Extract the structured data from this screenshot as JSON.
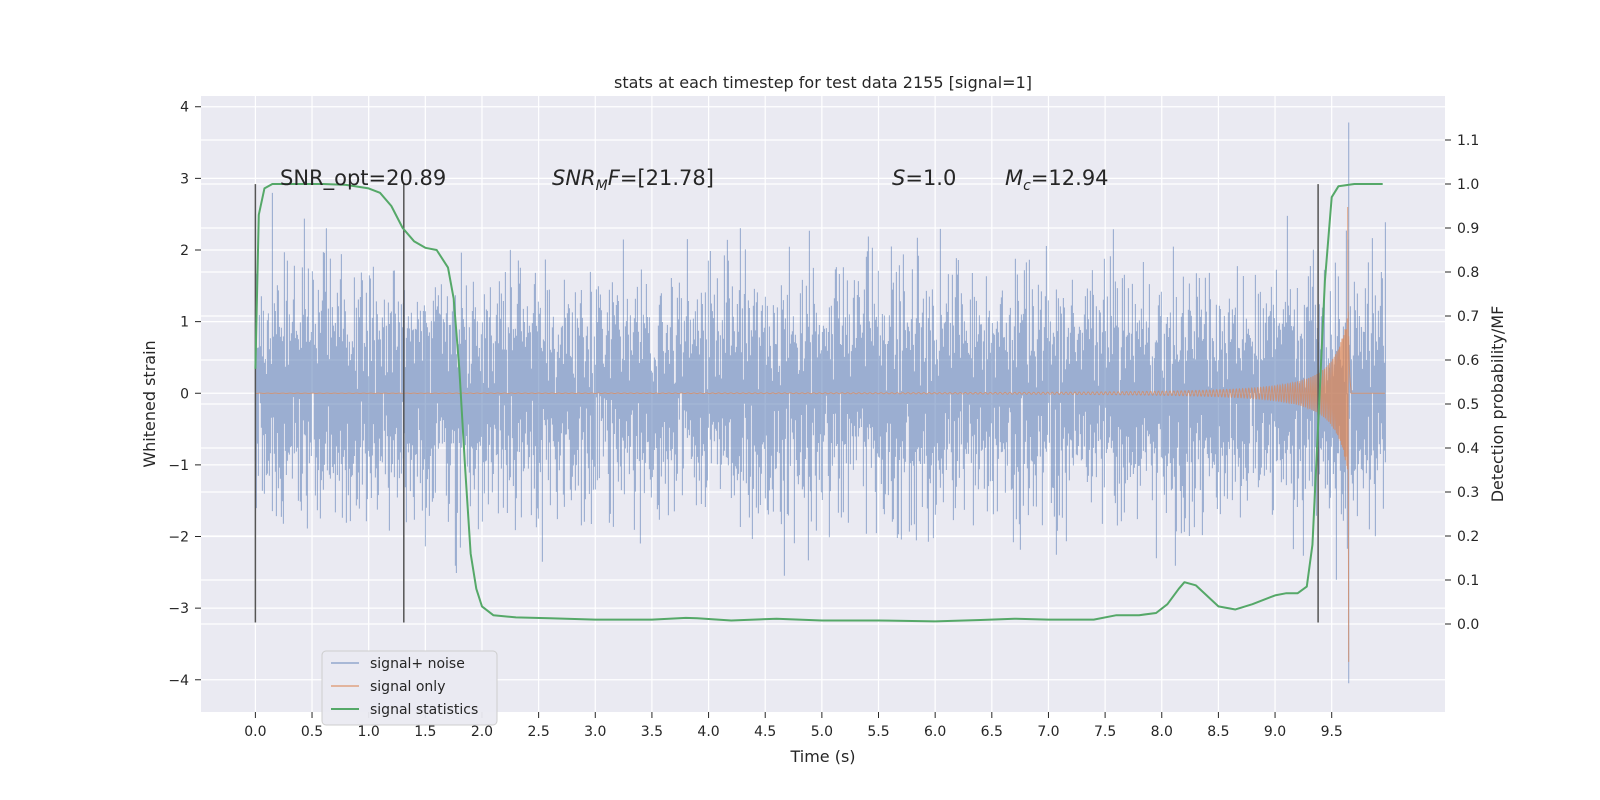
{
  "chart_data": {
    "type": "line",
    "title": "stats at each timestep for test data 2155 [signal=1]",
    "xlabel": "Time (s)",
    "ylabel_left": "Whitened strain",
    "ylabel_right": "Detection probability/MF",
    "xlim": [
      -0.48,
      10.5
    ],
    "ylim_left": [
      -4.45,
      4.15
    ],
    "ylim_right": [
      -0.2,
      1.2
    ],
    "x_ticks": [
      "0.0",
      "0.5",
      "1.0",
      "1.5",
      "2.0",
      "2.5",
      "3.0",
      "3.5",
      "4.0",
      "4.5",
      "5.0",
      "5.5",
      "6.0",
      "6.5",
      "7.0",
      "7.5",
      "8.0",
      "8.5",
      "9.0",
      "9.5"
    ],
    "y_ticks_left": [
      "4",
      "3",
      "2",
      "1",
      "0",
      "−1",
      "−2",
      "−3",
      "−4"
    ],
    "y_ticks_right": [
      "1.1",
      "1.0",
      "0.9",
      "0.8",
      "0.7",
      "0.6",
      "0.5",
      "0.4",
      "0.3",
      "0.2",
      "0.1",
      "0.0"
    ],
    "annotations": {
      "snr_opt": "SNR_opt=20.89",
      "snr_mf_sym": "SNR",
      "snr_mf_sub": "M",
      "snr_mf_rest": "F=[21.78]",
      "s_sym": "S",
      "s_rest": "=1.0",
      "mc_sym": "M",
      "mc_sub": "c",
      "mc_rest": "=12.94"
    },
    "vertical_markers": [
      {
        "x": 0.0,
        "y_range": [
          -3.2,
          2.92
        ]
      },
      {
        "x": 1.31,
        "y_range": [
          -3.2,
          2.92
        ]
      },
      {
        "x": 9.38,
        "y_range": [
          -3.2,
          2.92
        ]
      }
    ],
    "legend": {
      "placement": "lower-left",
      "entries": [
        "signal+ noise",
        "signal only",
        "signal statistics"
      ]
    },
    "series": [
      {
        "name": "signal+ noise",
        "axis": "left",
        "color": "#4c72b0",
        "description_x_range": [
          0.0,
          9.97
        ],
        "typical_amplitude": 1.8,
        "peak_values": [
          3.78,
          -4.05
        ]
      },
      {
        "name": "signal only",
        "axis": "left",
        "color": "#dd8452",
        "x_range": [
          0.0,
          9.97
        ],
        "merger_time": 9.65,
        "peak_values": [
          2.6,
          -3.75
        ]
      },
      {
        "name": "signal statistics",
        "axis": "right",
        "color": "#55a868",
        "x": [
          0.0,
          0.03,
          0.08,
          0.15,
          0.25,
          0.4,
          0.6,
          0.8,
          1.0,
          1.1,
          1.2,
          1.3,
          1.4,
          1.5,
          1.6,
          1.7,
          1.75,
          1.8,
          1.85,
          1.9,
          1.95,
          2.0,
          2.1,
          2.3,
          2.6,
          3.0,
          3.5,
          3.8,
          3.9,
          4.2,
          4.6,
          5.0,
          5.5,
          6.0,
          6.4,
          6.7,
          7.0,
          7.4,
          7.6,
          7.8,
          7.95,
          8.05,
          8.15,
          8.2,
          8.3,
          8.5,
          8.65,
          8.8,
          9.0,
          9.1,
          9.2,
          9.28,
          9.33,
          9.38,
          9.44,
          9.5,
          9.56,
          9.7,
          9.95
        ],
        "values": [
          0.58,
          0.93,
          0.99,
          1.0,
          1.0,
          1.0,
          1.0,
          0.998,
          0.99,
          0.98,
          0.95,
          0.9,
          0.87,
          0.855,
          0.85,
          0.81,
          0.74,
          0.58,
          0.36,
          0.16,
          0.08,
          0.04,
          0.02,
          0.015,
          0.013,
          0.01,
          0.01,
          0.014,
          0.013,
          0.008,
          0.012,
          0.008,
          0.008,
          0.006,
          0.009,
          0.012,
          0.01,
          0.01,
          0.02,
          0.02,
          0.025,
          0.045,
          0.08,
          0.095,
          0.088,
          0.04,
          0.033,
          0.045,
          0.065,
          0.07,
          0.07,
          0.085,
          0.18,
          0.45,
          0.78,
          0.97,
          0.995,
          1.0,
          1.0
        ]
      }
    ]
  }
}
